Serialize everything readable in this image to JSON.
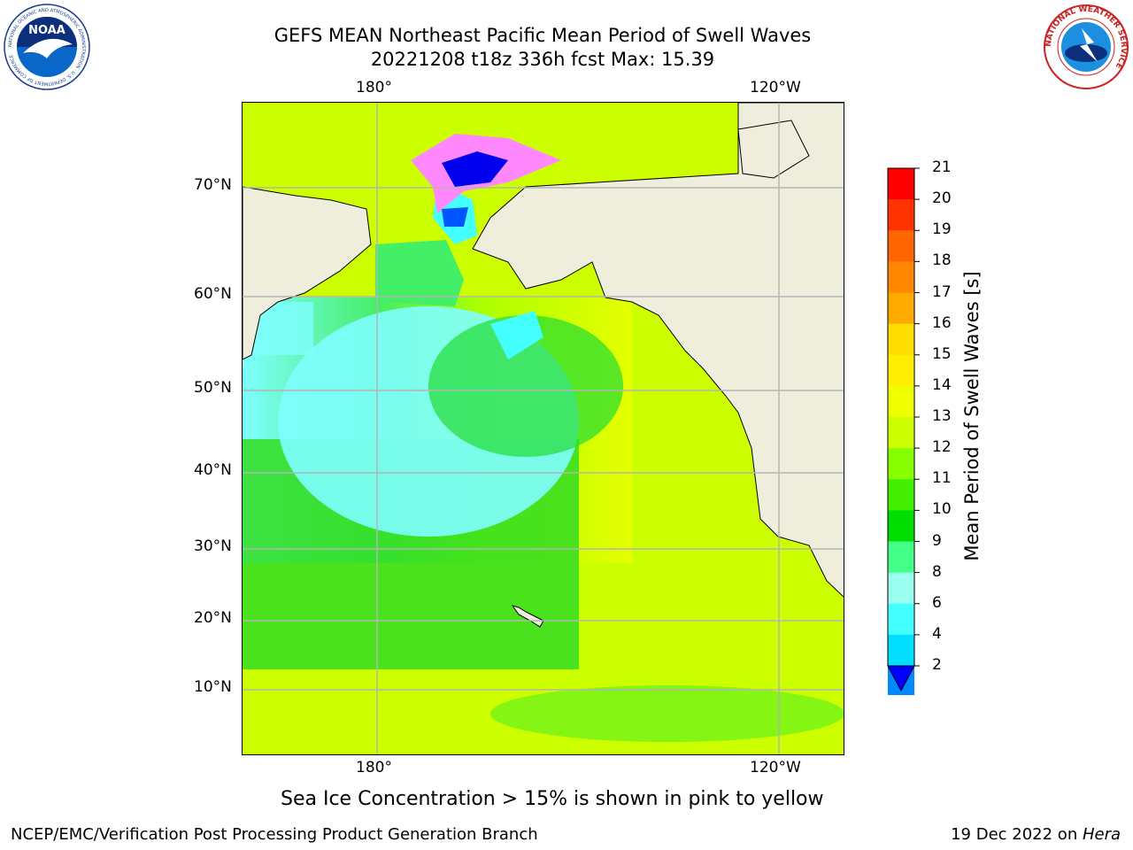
{
  "title": {
    "line1": "GEFS MEAN Northeast Pacific Mean Period of Swell Waves",
    "line2": "20221208 t18z 336h fcst   Max: 15.39"
  },
  "axes": {
    "lon_top": [
      "180°",
      "120°W"
    ],
    "lon_bottom": [
      "180°",
      "120°W"
    ],
    "lat": [
      "70°N",
      "60°N",
      "50°N",
      "40°N",
      "30°N",
      "20°N",
      "10°N"
    ]
  },
  "colorbar": {
    "label": "Mean Period of Swell Waves [s]",
    "ticks": [
      "21",
      "20",
      "19",
      "18",
      "17",
      "16",
      "15",
      "14",
      "13",
      "12",
      "11",
      "10",
      "9",
      "8",
      "6",
      "4",
      "2"
    ],
    "colors": [
      "#ff0000",
      "#ff3300",
      "#ff6600",
      "#ff8800",
      "#ffaa00",
      "#ffdd00",
      "#ffee00",
      "#eeff00",
      "#ccff00",
      "#88ff00",
      "#44ee00",
      "#00dd00",
      "#44ff88",
      "#99ffee",
      "#44ffff",
      "#00ddff",
      "#0088ff"
    ],
    "under_color": "#0000ff"
  },
  "caption": "Sea Ice Concentration > 15% is shown in pink to yellow",
  "footer": {
    "left": "NCEP/EMC/Verification Post Processing Product Generation Branch",
    "right_date": "19 Dec 2022 on ",
    "right_host": "Hera"
  },
  "logos": {
    "noaa_text": "NOAA",
    "noaa_ring": "NATIONAL OCEANIC AND ATMOSPHERIC ADMINISTRATION · U.S. DEPARTMENT OF COMMERCE",
    "nws_ring": "NATIONAL WEATHER SERVICE"
  },
  "colors": {
    "land": "#efeddc",
    "grid": "#b4b4b4"
  }
}
